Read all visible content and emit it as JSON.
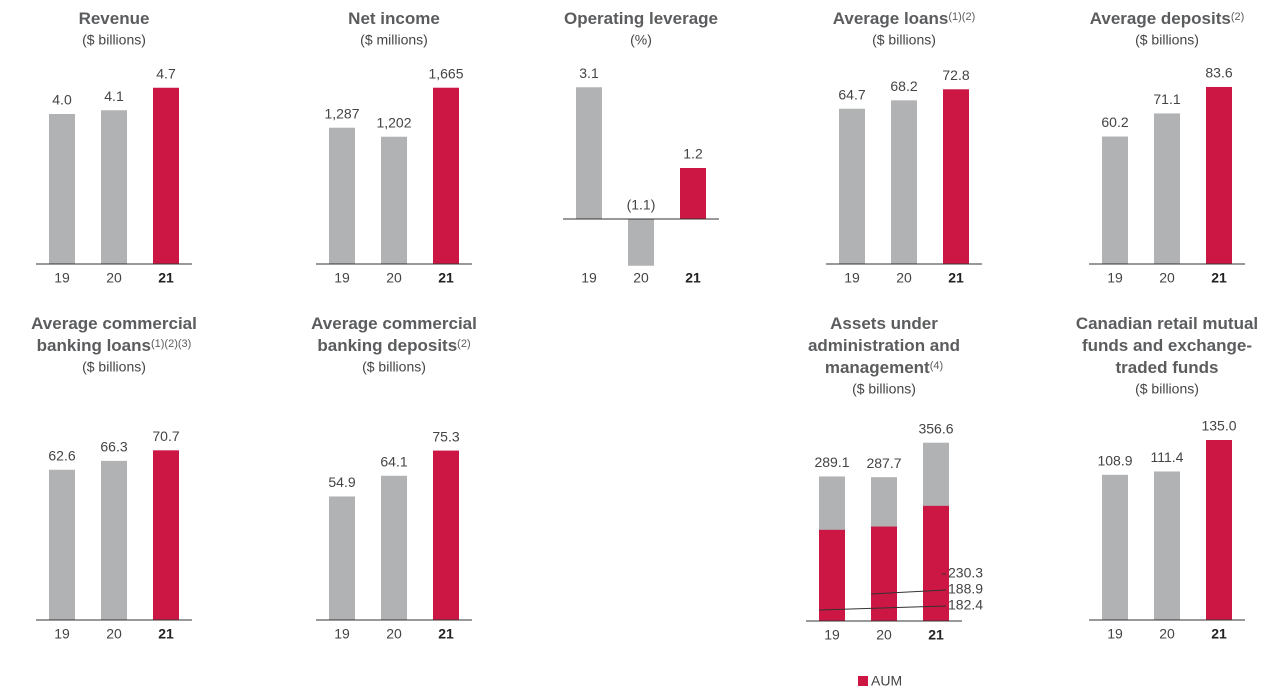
{
  "chart_data": [
    {
      "type": "bar",
      "title": [
        "Revenue"
      ],
      "subtitle": "($ billions)",
      "categories": [
        "19",
        "20",
        "21"
      ],
      "values": [
        4.0,
        4.1,
        4.7
      ],
      "value_labels": [
        "4.0",
        "4.1",
        "4.7"
      ],
      "colors": [
        "#b1b2b4",
        "#b1b2b4",
        "#cc1745"
      ],
      "ylim": [
        0,
        4.8
      ]
    },
    {
      "type": "bar",
      "title": [
        "Net income"
      ],
      "subtitle": "($ millions)",
      "categories": [
        "19",
        "20",
        "21"
      ],
      "values": [
        1287,
        1202,
        1665
      ],
      "value_labels": [
        "1,287",
        "1,202",
        "1,665"
      ],
      "colors": [
        "#b1b2b4",
        "#b1b2b4",
        "#cc1745"
      ],
      "ylim": [
        0,
        1700
      ]
    },
    {
      "type": "bar",
      "title": [
        "Operating leverage"
      ],
      "subtitle": "(%)",
      "categories": [
        "19",
        "20",
        "21"
      ],
      "values": [
        3.1,
        -1.1,
        1.2
      ],
      "value_labels": [
        "3.1",
        "(1.1)",
        "1.2"
      ],
      "colors": [
        "#b1b2b4",
        "#b1b2b4",
        "#cc1745"
      ],
      "ylim": [
        -1.2,
        3.2
      ]
    },
    {
      "type": "bar",
      "title": [
        "Average loans"
      ],
      "title_note": "(1)(2)",
      "subtitle": "($ billions)",
      "categories": [
        "19",
        "20",
        "21"
      ],
      "values": [
        64.7,
        68.2,
        72.8
      ],
      "colors": [
        "#b1b2b4",
        "#b1b2b4",
        "#cc1745"
      ],
      "ylim": [
        0,
        75
      ]
    },
    {
      "type": "bar",
      "title": [
        "Average deposits"
      ],
      "title_note": "(2)",
      "subtitle": "($ billions)",
      "categories": [
        "19",
        "20",
        "21"
      ],
      "values": [
        60.2,
        71.1,
        83.6
      ],
      "colors": [
        "#b1b2b4",
        "#b1b2b4",
        "#cc1745"
      ],
      "ylim": [
        0,
        85
      ]
    },
    {
      "type": "bar",
      "title": [
        "Average commercial",
        "banking loans"
      ],
      "title_note": "(1)(2)(3)",
      "subtitle": "($ billions)",
      "categories": [
        "19",
        "20",
        "21"
      ],
      "values": [
        62.6,
        66.3,
        70.7
      ],
      "colors": [
        "#b1b2b4",
        "#b1b2b4",
        "#cc1745"
      ],
      "ylim": [
        0,
        75
      ]
    },
    {
      "type": "bar",
      "title": [
        "Average commercial",
        "banking deposits"
      ],
      "title_note": "(2)",
      "subtitle": "($ billions)",
      "categories": [
        "19",
        "20",
        "21"
      ],
      "values": [
        54.9,
        64.1,
        75.3
      ],
      "colors": [
        "#b1b2b4",
        "#b1b2b4",
        "#cc1745"
      ],
      "ylim": [
        0,
        80
      ]
    },
    {
      "type": "overlap_bar",
      "title": [
        "Assets under",
        "administration and",
        "management"
      ],
      "title_note": "(4)",
      "subtitle": "($ billions)",
      "categories": [
        "19",
        "20",
        "21"
      ],
      "series": [
        {
          "color": "#b1b2b4",
          "values": [
            289.1,
            287.7,
            356.6
          ]
        },
        {
          "name": "AUM",
          "color": "#cc1745",
          "values": [
            182.4,
            188.9,
            230.3
          ]
        }
      ],
      "ylim": [
        0,
        360
      ]
    },
    {
      "type": "bar",
      "title": [
        "Canadian retail mutual",
        "funds and exchange-",
        "traded funds"
      ],
      "subtitle": "($ billions)",
      "categories": [
        "19",
        "20",
        "21"
      ],
      "values": [
        108.9,
        111.4,
        135.0
      ],
      "value_labels": [
        "108.9",
        "111.4",
        "135.0"
      ],
      "colors": [
        "#b1b2b4",
        "#b1b2b4",
        "#cc1745"
      ],
      "ylim": [
        0,
        135
      ]
    }
  ]
}
